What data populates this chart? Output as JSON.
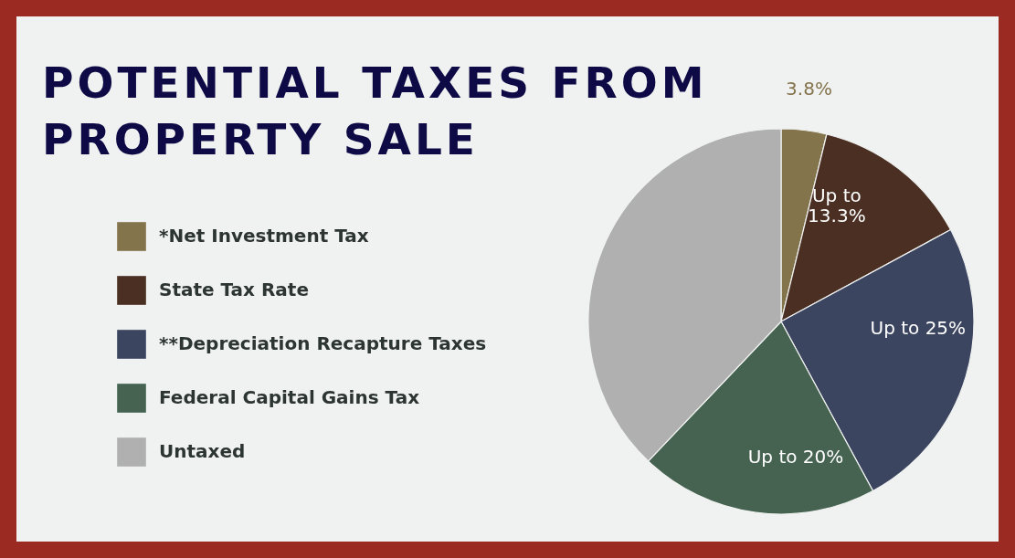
{
  "chart_data": {
    "type": "pie",
    "title": "POTENTIAL TAXES FROM PROPERTY SALE",
    "categories": [
      "*Net Investment Tax",
      "State Tax Rate",
      "**Depreciation Recapture Taxes",
      "Federal Capital Gains Tax",
      "Untaxed"
    ],
    "values": [
      3.8,
      13.3,
      25,
      20,
      37.9
    ],
    "colors": [
      "#84744c",
      "#4a2f22",
      "#3c4560",
      "#456350",
      "#b0b0b0"
    ],
    "value_labels": [
      "3.8%",
      "Up to 13.3%",
      "Up to 25%",
      "Up to 20%",
      null
    ],
    "legend": "left"
  }
}
